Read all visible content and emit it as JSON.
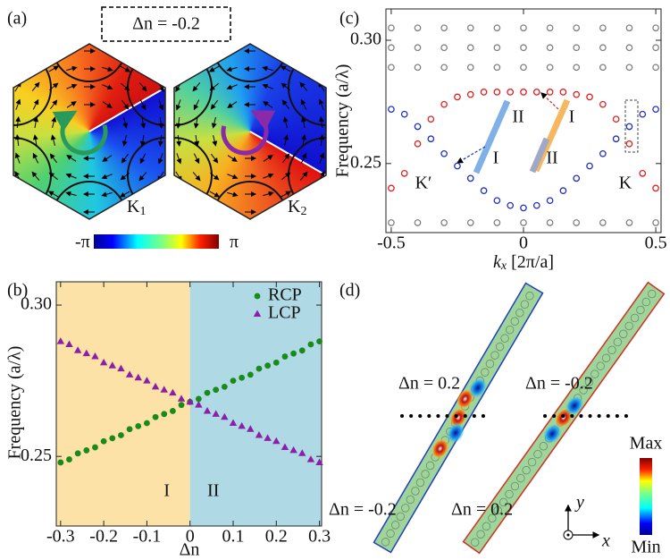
{
  "labels": {
    "a": "(a)",
    "b": "(b)",
    "c": "(c)",
    "d": "(d)"
  },
  "panel_a": {
    "title": "Δn = -0.2",
    "hexagons": [
      {
        "name": "K",
        "sub": "1"
      },
      {
        "name": "K",
        "sub": "2"
      }
    ],
    "colorbar": {
      "min": "-π",
      "max": "π"
    }
  },
  "chart_data": [
    {
      "type": "scatter",
      "xlabel": "Δn",
      "ylabel": "Frequency (a/λ)",
      "xlim": [
        -0.31,
        0.305
      ],
      "ylim": [
        0.227,
        0.3077
      ],
      "xticks": [
        -0.3,
        -0.2,
        -0.1,
        0,
        0.1,
        0.2,
        0.3
      ],
      "yticks": [
        0.25,
        {
          "value": 0.3,
          "label": "0.30"
        }
      ],
      "regions": [
        {
          "name": "I",
          "color": "#fce2a6",
          "x": [
            -0.31,
            0
          ]
        },
        {
          "name": "II",
          "color": "#afd9e4",
          "x": [
            0,
            0.305
          ]
        }
      ],
      "x": [
        -0.3,
        -0.28,
        -0.26,
        -0.24,
        -0.22,
        -0.2,
        -0.18,
        -0.16,
        -0.14,
        -0.12,
        -0.1,
        -0.08,
        -0.06,
        -0.04,
        -0.02,
        0,
        0.02,
        0.04,
        0.06,
        0.08,
        0.1,
        0.12,
        0.14,
        0.16,
        0.18,
        0.2,
        0.22,
        0.24,
        0.26,
        0.28,
        0.3
      ],
      "series": [
        {
          "name": "RCP",
          "color": "#1a8a1a",
          "marker": "circle",
          "values": [
            0.248,
            0.249,
            0.251,
            0.252,
            0.253,
            0.255,
            0.256,
            0.257,
            0.259,
            0.26,
            0.261,
            0.263,
            0.264,
            0.265,
            0.267,
            0.268,
            0.269,
            0.271,
            0.272,
            0.273,
            0.275,
            0.276,
            0.277,
            0.279,
            0.28,
            0.281,
            0.283,
            0.284,
            0.285,
            0.287,
            0.288
          ]
        },
        {
          "name": "LCP",
          "color": "#8b1fa8",
          "marker": "triangle",
          "values": [
            0.288,
            0.287,
            0.285,
            0.284,
            0.283,
            0.281,
            0.28,
            0.279,
            0.277,
            0.276,
            0.275,
            0.273,
            0.272,
            0.271,
            0.269,
            0.268,
            0.267,
            0.265,
            0.264,
            0.263,
            0.261,
            0.26,
            0.259,
            0.257,
            0.256,
            0.255,
            0.253,
            0.252,
            0.251,
            0.249,
            0.248
          ]
        }
      ],
      "legend": "upper right"
    },
    {
      "type": "scatter",
      "xlabel": {
        "main": "k",
        "sub": "x",
        "rest": " [2π/a]"
      },
      "ylabel": "Frequency (a/λ)",
      "xlim": [
        -0.52,
        0.52
      ],
      "ylim": [
        0.222,
        0.3127
      ],
      "xticks": [
        -0.5,
        0,
        0.5
      ],
      "yticks": [
        0.25,
        {
          "value": 0.3,
          "label": "0.30"
        }
      ],
      "annotations": [
        "II",
        "I",
        "I",
        "II",
        "K′",
        "K"
      ],
      "series": [
        {
          "color": "#808080",
          "marker": "open-circle",
          "x": [
            -0.5,
            -0.4,
            -0.3,
            -0.2,
            -0.1,
            0,
            0.1,
            0.2,
            0.3,
            0.4,
            0.5,
            -0.5,
            -0.4,
            -0.3,
            -0.2,
            -0.1,
            0,
            0.1,
            0.2,
            0.3,
            0.4,
            0.5,
            -0.5,
            -0.4,
            -0.3,
            -0.2,
            -0.1,
            0,
            0.1,
            0.2,
            0.3,
            0.4,
            0.5,
            -0.5,
            -0.4,
            -0.3,
            -0.2,
            -0.1,
            0,
            0.1,
            0.2,
            0.3,
            0.4,
            0.5
          ],
          "values": [
            0.305,
            0.305,
            0.305,
            0.305,
            0.305,
            0.305,
            0.305,
            0.305,
            0.305,
            0.305,
            0.305,
            0.297,
            0.297,
            0.297,
            0.297,
            0.297,
            0.297,
            0.297,
            0.297,
            0.297,
            0.297,
            0.297,
            0.289,
            0.289,
            0.289,
            0.289,
            0.289,
            0.289,
            0.289,
            0.289,
            0.289,
            0.289,
            0.289,
            0.226,
            0.226,
            0.226,
            0.226,
            0.226,
            0.226,
            0.226,
            0.226,
            0.226,
            0.226,
            0.226
          ]
        },
        {
          "color": "#e02020",
          "marker": "open-circle",
          "x": [
            -0.5,
            -0.45,
            -0.4,
            -0.35,
            -0.3,
            -0.25,
            -0.2,
            -0.15,
            -0.1,
            -0.05,
            0,
            0.05,
            0.1,
            0.15,
            0.2,
            0.25,
            0.3,
            0.35,
            0.4,
            0.45,
            0.5
          ],
          "values": [
            0.24,
            0.246,
            0.258,
            0.268,
            0.274,
            0.277,
            0.278,
            0.279,
            0.279,
            0.279,
            0.279,
            0.279,
            0.279,
            0.279,
            0.278,
            0.277,
            0.274,
            0.268,
            0.258,
            0.246,
            0.24
          ]
        },
        {
          "color": "#1f2fbf",
          "marker": "open-circle",
          "x": [
            -0.5,
            -0.45,
            -0.4,
            -0.35,
            -0.3,
            -0.25,
            -0.2,
            -0.15,
            -0.1,
            -0.05,
            0,
            0.05,
            0.1,
            0.15,
            0.2,
            0.25,
            0.3,
            0.35,
            0.4,
            0.45,
            0.5
          ],
          "values": [
            0.272,
            0.27,
            0.265,
            0.26,
            0.254,
            0.249,
            0.244,
            0.239,
            0.235,
            0.233,
            0.232,
            0.233,
            0.235,
            0.239,
            0.244,
            0.249,
            0.254,
            0.26,
            0.265,
            0.27,
            0.272
          ]
        }
      ]
    }
  ],
  "panel_d": {
    "strips": [
      {
        "top": "Δn = 0.2",
        "bottom": "Δn = -0.2"
      },
      {
        "top": "Δn = -0.2",
        "bottom": "Δn = 0.2"
      }
    ],
    "colorbar": {
      "max": "Max",
      "min": "Min"
    },
    "axes": {
      "y": "y",
      "x": "x"
    }
  }
}
